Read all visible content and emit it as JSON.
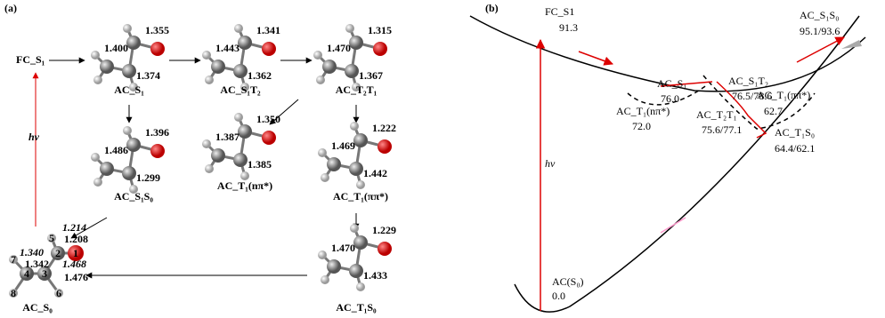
{
  "panel_a": {
    "label": "(a)",
    "start_label": "FC_S₁",
    "excitation": "hν",
    "molecules": [
      {
        "name": "AC_S₁",
        "bonds": [
          "1.355",
          "1.400",
          "1.374"
        ]
      },
      {
        "name": "AC_S₁T₂",
        "bonds": [
          "1.341",
          "1.443",
          "1.362"
        ]
      },
      {
        "name": "AC_T₂T₁",
        "bonds": [
          "1.315",
          "1.470",
          "1.367"
        ]
      },
      {
        "name": "AC_S₁S₀",
        "bonds": [
          "1.396",
          "1.486",
          "1.299"
        ]
      },
      {
        "name": "AC_T₁(nπ*)",
        "bonds": [
          "1.350",
          "1.387",
          "1.385"
        ]
      },
      {
        "name": "AC_T₁(ππ*)",
        "bonds": [
          "1.222",
          "1.469",
          "1.442"
        ]
      },
      {
        "name": "AC_T₁S₀",
        "bonds": [
          "1.229",
          "1.470",
          "1.433"
        ]
      }
    ],
    "ground": {
      "name": "AC_S₀",
      "bonds": [
        "1.208",
        "1.342",
        "1.476"
      ],
      "other_bonds": [
        "1.214",
        "1.340",
        "1.468"
      ],
      "atoms": [
        "1",
        "2",
        "3",
        "4",
        "5",
        "6",
        "7",
        "8"
      ]
    }
  },
  "panel_b": {
    "label": "(b)",
    "excitation": "hν",
    "states": [
      {
        "name": "FC_S1",
        "energy": "91.3"
      },
      {
        "name": "AC_S₁",
        "energy": "76.0"
      },
      {
        "name": "AC_S₁T₂",
        "energy": "76.5/78.6"
      },
      {
        "name": "AC_S₁S₀",
        "energy": "95.1/93.6"
      },
      {
        "name": "AC_T₁(nπ*)",
        "energy": "72.0"
      },
      {
        "name": "AC_T₂T₁",
        "energy": "75.6/77.1"
      },
      {
        "name": "AC_T₁(ππ*)",
        "energy": "62.7"
      },
      {
        "name": "AC_T₁S₀",
        "energy": "64.4/62.1"
      },
      {
        "name": "AC(S₀)",
        "energy": "0.0"
      }
    ]
  }
}
